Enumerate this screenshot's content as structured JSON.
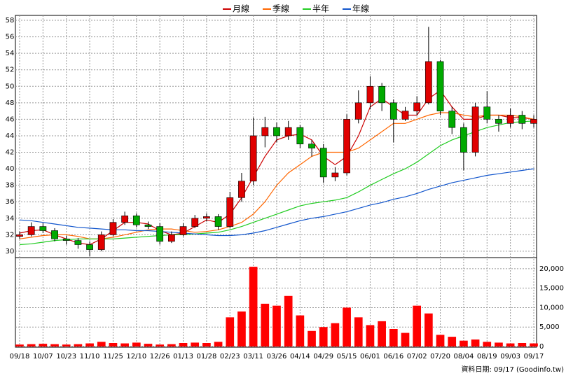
{
  "chart_data": {
    "type": "candlestick",
    "legend": [
      "月線",
      "季線",
      "半年",
      "年線"
    ],
    "footer": "資料日期: 09/17 (Goodinfo.tw)",
    "categories": [
      "09/18",
      null,
      "10/07",
      null,
      "10/23",
      null,
      "11/10",
      null,
      "11/25",
      null,
      "12/10",
      null,
      "12/26",
      null,
      "01/13",
      null,
      "01/28",
      null,
      "02/23",
      null,
      "03/11",
      null,
      "03/26",
      null,
      "04/14",
      null,
      "04/29",
      null,
      "05/15",
      null,
      "06/01",
      null,
      "06/16",
      null,
      "07/02",
      null,
      "07/20",
      null,
      "08/04",
      null,
      "08/19",
      null,
      "09/03",
      null,
      "09/17"
    ],
    "up_color": "#e00000",
    "down_color": "#00aa00",
    "open": [
      31.8,
      32.0,
      33.0,
      32.5,
      31.5,
      31.3,
      30.8,
      30.2,
      32.0,
      33.5,
      34.3,
      33.2,
      33.0,
      31.2,
      32.0,
      33.0,
      34.0,
      34.2,
      33.0,
      36.5,
      38.5,
      44.0,
      45.0,
      44.0,
      45.0,
      43.0,
      42.5,
      39.0,
      39.5,
      46.0,
      48.0,
      50.0,
      48.0,
      46.0,
      47.0,
      48.0,
      53.0,
      47.0,
      45.0,
      42.0,
      47.5,
      46.0,
      45.5,
      46.5,
      45.5
    ],
    "high": [
      32.4,
      33.5,
      33.4,
      32.8,
      31.9,
      31.6,
      31.2,
      32.4,
      33.9,
      34.8,
      34.6,
      33.6,
      33.4,
      32.4,
      33.4,
      34.4,
      34.6,
      34.5,
      37.2,
      39.5,
      46.2,
      46.3,
      45.6,
      45.8,
      45.3,
      43.5,
      43.0,
      40.2,
      46.6,
      49.5,
      51.2,
      50.4,
      48.4,
      47.5,
      48.8,
      57.2,
      53.2,
      47.5,
      45.5,
      48.0,
      49.4,
      46.5,
      47.3,
      47.0,
      46.5
    ],
    "low": [
      31.5,
      31.8,
      32.2,
      31.2,
      30.8,
      30.3,
      29.4,
      30.0,
      31.8,
      33.2,
      32.9,
      32.7,
      30.8,
      31.0,
      31.8,
      32.8,
      33.6,
      32.6,
      32.8,
      36.0,
      38.0,
      42.6,
      43.2,
      43.5,
      42.5,
      41.5,
      38.3,
      38.5,
      39.2,
      45.5,
      47.2,
      47.0,
      43.2,
      45.8,
      46.5,
      47.8,
      46.5,
      44.2,
      39.8,
      41.5,
      45.5,
      44.5,
      45.0,
      44.8,
      45.0
    ],
    "close": [
      32.0,
      33.0,
      32.5,
      31.5,
      31.3,
      30.8,
      30.2,
      32.0,
      33.5,
      34.3,
      33.2,
      33.0,
      31.2,
      32.0,
      33.0,
      34.0,
      34.2,
      33.0,
      36.5,
      38.5,
      44.0,
      45.0,
      44.0,
      45.0,
      43.0,
      42.5,
      39.0,
      39.5,
      46.0,
      48.0,
      50.0,
      48.0,
      46.0,
      47.0,
      48.0,
      53.0,
      47.0,
      45.0,
      42.0,
      47.5,
      46.0,
      45.5,
      46.5,
      45.5,
      46.0
    ],
    "series": [
      {
        "name": "月線",
        "color": "#cc0000",
        "values": [
          32.2,
          32.5,
          32.6,
          32,
          31.5,
          31,
          30.8,
          31.5,
          32.5,
          33.5,
          33.5,
          33.3,
          32.5,
          32,
          32.2,
          33,
          33.8,
          33.5,
          34.5,
          36.5,
          39,
          41.5,
          43.5,
          44,
          44.2,
          43.5,
          41.5,
          40.5,
          41.5,
          44,
          47.5,
          48.5,
          47.5,
          46.5,
          46.5,
          48.5,
          49.5,
          47.5,
          46,
          46,
          46.5,
          46.5,
          46.2,
          46.2,
          46
        ]
      },
      {
        "name": "季線",
        "color": "#ff6600",
        "values": [
          31.5,
          31.7,
          31.9,
          32,
          32,
          31.8,
          31.5,
          31.5,
          31.7,
          32,
          32.3,
          32.6,
          32.7,
          32.7,
          32.5,
          32.3,
          32.4,
          32.6,
          33,
          33.5,
          34.5,
          36,
          38,
          39.5,
          40.5,
          41.5,
          42,
          42,
          42,
          42.5,
          43.5,
          44.5,
          45.5,
          45.5,
          46,
          46.5,
          46.8,
          46.8,
          46.5,
          46.3,
          46.5,
          46.5,
          46.5,
          46.3,
          46
        ]
      },
      {
        "name": "半年",
        "color": "#22cc22",
        "values": [
          30.8,
          30.9,
          31.1,
          31.3,
          31.4,
          31.5,
          31.5,
          31.5,
          31.5,
          31.6,
          31.7,
          31.8,
          31.9,
          32,
          32,
          32.1,
          32.2,
          32.3,
          32.6,
          33,
          33.5,
          34,
          34.5,
          35,
          35.5,
          35.8,
          36,
          36.2,
          36.5,
          37.2,
          38,
          38.7,
          39.4,
          40,
          40.8,
          41.8,
          42.8,
          43.5,
          44,
          44.5,
          45,
          45.3,
          45.6,
          45.7,
          45.8
        ]
      },
      {
        "name": "年線",
        "color": "#1155cc",
        "values": [
          33.8,
          33.7,
          33.5,
          33.3,
          33.1,
          32.9,
          32.8,
          32.7,
          32.6,
          32.6,
          32.5,
          32.5,
          32.4,
          32.3,
          32.2,
          32.1,
          32,
          31.9,
          31.9,
          32,
          32.2,
          32.5,
          32.9,
          33.3,
          33.7,
          34,
          34.2,
          34.5,
          34.8,
          35.2,
          35.6,
          35.9,
          36.3,
          36.6,
          37,
          37.5,
          37.9,
          38.3,
          38.6,
          38.9,
          39.2,
          39.4,
          39.6,
          39.8,
          40
        ]
      }
    ],
    "ylim": [
      29.4,
      58
    ],
    "yticks": [
      30,
      32,
      34,
      36,
      38,
      40,
      42,
      44,
      46,
      48,
      50,
      52,
      54,
      56,
      58
    ],
    "volume": {
      "color": "#ff0000",
      "values": [
        500,
        600,
        700,
        600,
        500,
        600,
        800,
        1200,
        900,
        800,
        1000,
        700,
        500,
        600,
        900,
        1000,
        900,
        1200,
        7500,
        9000,
        20500,
        11000,
        10500,
        13000,
        8000,
        4000,
        5000,
        6000,
        10000,
        7500,
        5500,
        6500,
        4500,
        3500,
        10500,
        8500,
        3000,
        2500,
        1500,
        1800,
        1200,
        1000,
        800,
        900,
        800
      ],
      "ylim": [
        0,
        22500
      ],
      "yticks": [
        0,
        {
          "value": 5000,
          "label": "5,000"
        },
        {
          "value": 10000,
          "label": "10,000"
        },
        {
          "value": 15000,
          "label": "15,000"
        },
        {
          "value": 20000,
          "label": "20,000"
        }
      ]
    },
    "grid": true
  }
}
